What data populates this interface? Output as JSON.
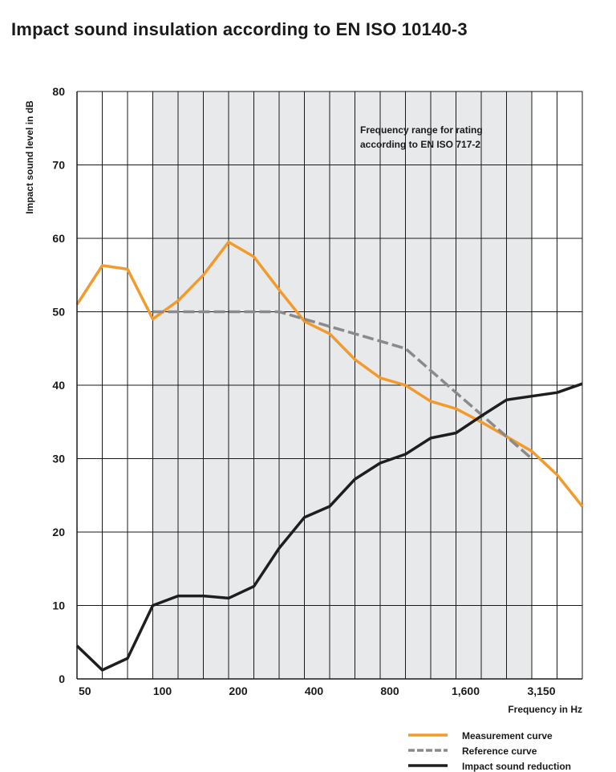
{
  "title": "Impact sound insulation according to EN ISO 10140-3",
  "chart_data": {
    "type": "line",
    "xlabel": "Frequency in Hz",
    "ylabel": "Impact sound level in dB",
    "ylim": [
      0,
      80
    ],
    "yticks": [
      0,
      10,
      20,
      30,
      40,
      50,
      60,
      70,
      80
    ],
    "xtick_labels": [
      {
        "at": 50,
        "label": "50"
      },
      {
        "at": 100,
        "label": "100"
      },
      {
        "at": 200,
        "label": "200"
      },
      {
        "at": 400,
        "label": "400"
      },
      {
        "at": 800,
        "label": "800"
      },
      {
        "at": 1600,
        "label": "1,600"
      },
      {
        "at": 3150,
        "label": "3,150"
      }
    ],
    "x": [
      50,
      63,
      80,
      100,
      125,
      160,
      200,
      250,
      315,
      400,
      500,
      630,
      800,
      1000,
      1250,
      1600,
      2000,
      2500,
      3150,
      4000,
      5000
    ],
    "rating_range": {
      "from": 100,
      "to": 3150,
      "label_lines": [
        "Frequency range for rating",
        "according to EN ISO 717-2"
      ]
    },
    "grid": true,
    "legend_position": "bottom-right",
    "series": [
      {
        "name": "Measurement curve",
        "color": "#f39a2c",
        "style": "solid",
        "x": [
          50,
          63,
          80,
          100,
          125,
          160,
          200,
          250,
          315,
          400,
          500,
          630,
          800,
          1000,
          1250,
          1600,
          2000,
          2500,
          3150,
          4000,
          5000
        ],
        "values": [
          51,
          56.3,
          55.8,
          49,
          51.5,
          55,
          59.5,
          57.5,
          53,
          48.7,
          47,
          43.5,
          41,
          40,
          37.8,
          36.8,
          35,
          33,
          31,
          27.8,
          23.5
        ]
      },
      {
        "name": "Reference curve",
        "color": "#8a8a8a",
        "style": "dashed",
        "x": [
          100,
          125,
          160,
          200,
          250,
          315,
          400,
          500,
          630,
          800,
          1000,
          1250,
          1600,
          2000,
          2500,
          3150
        ],
        "values": [
          50,
          50,
          50,
          50,
          50,
          50,
          49,
          48,
          47,
          46,
          45,
          42,
          39,
          36,
          33,
          30
        ]
      },
      {
        "name": "Impact sound reduction",
        "color": "#1e1e1e",
        "style": "solid",
        "x": [
          50,
          63,
          80,
          100,
          125,
          160,
          200,
          250,
          315,
          400,
          500,
          630,
          800,
          1000,
          1250,
          1600,
          2000,
          2500,
          3150,
          4000,
          5000
        ],
        "values": [
          4.5,
          1.2,
          2.8,
          10,
          11.3,
          11.3,
          11,
          12.6,
          17.8,
          22,
          23.5,
          27.2,
          29.4,
          30.6,
          32.8,
          33.5,
          35.8,
          38,
          38.5,
          39,
          40.2
        ]
      }
    ]
  }
}
